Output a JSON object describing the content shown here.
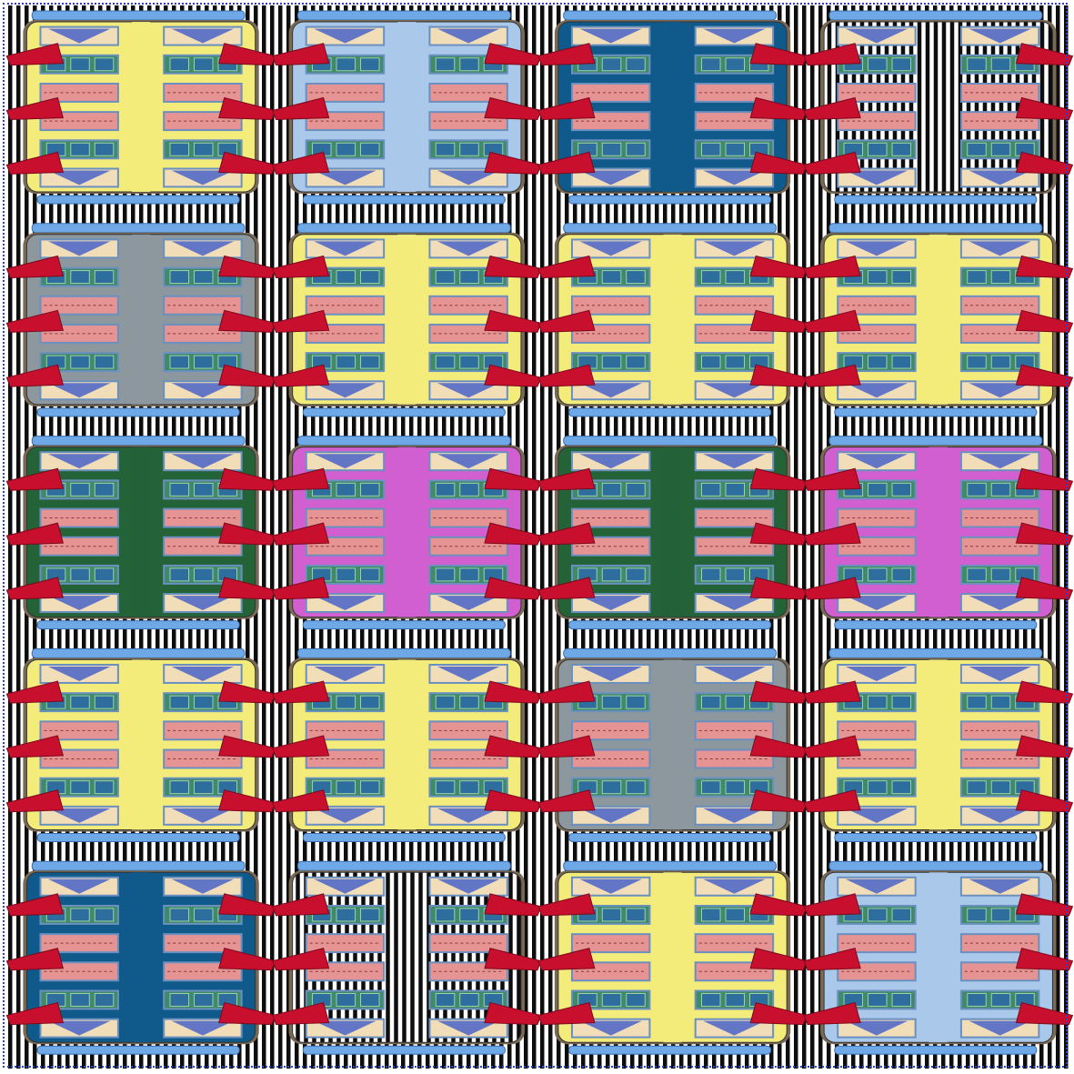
{
  "artwork": {
    "colors": {
      "stripe_dark": "#0d0d0d",
      "stripe_light": "#ffffff",
      "frame": "#3040c0",
      "shutter": "#c8102e",
      "shutter_edge": "#7a0a1c",
      "edge_wood": "#7a6a55",
      "balcony_rail": "#6fa8e6",
      "balcony_rail_dark": "#3a6fb0",
      "window_cream": "#f1ddb8",
      "window_pink": "#e69393",
      "window_blue": "#4a64c8",
      "window_green": "#3f8a6a",
      "window_frame": "#6a90c0"
    },
    "grid": {
      "rows": 5,
      "cols": 4
    },
    "facades": [
      {
        "row": 0,
        "col": 0,
        "fill": "#f4ec7a",
        "pattern": "solid"
      },
      {
        "row": 0,
        "col": 1,
        "fill": "#a9c8ea",
        "pattern": "solid"
      },
      {
        "row": 0,
        "col": 2,
        "fill": "#0f5a8a",
        "pattern": "solid"
      },
      {
        "row": 0,
        "col": 3,
        "fill": "#ffffff",
        "pattern": "striped"
      },
      {
        "row": 1,
        "col": 0,
        "fill": "#8c979e",
        "pattern": "solid"
      },
      {
        "row": 1,
        "col": 1,
        "fill": "#f4ec7a",
        "pattern": "solid"
      },
      {
        "row": 1,
        "col": 2,
        "fill": "#f4ec7a",
        "pattern": "solid"
      },
      {
        "row": 1,
        "col": 3,
        "fill": "#f4ec7a",
        "pattern": "solid"
      },
      {
        "row": 2,
        "col": 0,
        "fill": "#246238",
        "pattern": "solid"
      },
      {
        "row": 2,
        "col": 1,
        "fill": "#d25fd0",
        "pattern": "solid"
      },
      {
        "row": 2,
        "col": 2,
        "fill": "#246238",
        "pattern": "solid"
      },
      {
        "row": 2,
        "col": 3,
        "fill": "#d25fd0",
        "pattern": "solid"
      },
      {
        "row": 3,
        "col": 0,
        "fill": "#f4ec7a",
        "pattern": "solid"
      },
      {
        "row": 3,
        "col": 1,
        "fill": "#f4ec7a",
        "pattern": "solid"
      },
      {
        "row": 3,
        "col": 2,
        "fill": "#8c979e",
        "pattern": "solid"
      },
      {
        "row": 3,
        "col": 3,
        "fill": "#f4ec7a",
        "pattern": "solid"
      },
      {
        "row": 4,
        "col": 0,
        "fill": "#0f5a8a",
        "pattern": "solid"
      },
      {
        "row": 4,
        "col": 1,
        "fill": "#ffffff",
        "pattern": "striped"
      },
      {
        "row": 4,
        "col": 2,
        "fill": "#f4ec7a",
        "pattern": "solid"
      },
      {
        "row": 4,
        "col": 3,
        "fill": "#a9c8ea",
        "pattern": "solid"
      }
    ],
    "window_rows": [
      "cream",
      "green",
      "pink",
      "pink",
      "green",
      "cream"
    ]
  }
}
